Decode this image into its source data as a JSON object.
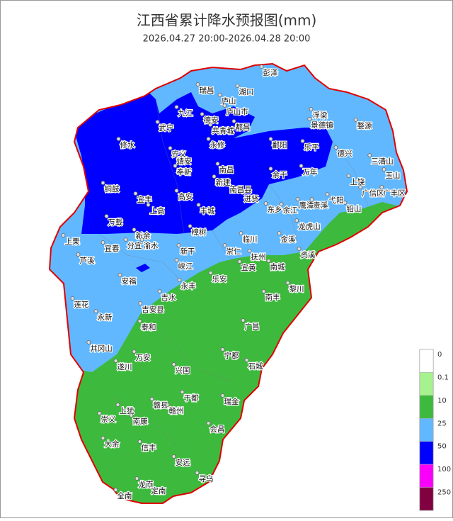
{
  "header": {
    "title": "江西省累计降水预报图(mm)",
    "subtitle": "2026.04.27 20:00-2026.04.28 20:00"
  },
  "cities": [
    "彭泽",
    "湖口",
    "瑞昌",
    "庐山",
    "庐山市",
    "九江",
    "德安",
    "共青城",
    "都昌",
    "武宁",
    "修水",
    "永修",
    "鄱阳",
    "乐平",
    "浮梁",
    "景德镇",
    "婺源",
    "德兴",
    "三清山",
    "玉山",
    "上饶",
    "广信区",
    "广丰区",
    "铅山",
    "弋阳",
    "贵溪",
    "鹰潭",
    "余江",
    "东乡",
    "进贤",
    "余干",
    "万年",
    "南昌",
    "南昌县",
    "新建",
    "安义",
    "靖安",
    "奉新",
    "铜鼓",
    "宜丰",
    "上高",
    "高安",
    "丰城",
    "樟树",
    "万载",
    "上栗",
    "芦溪",
    "宜春",
    "分宜",
    "新余",
    "渝水",
    "新干",
    "峡江",
    "崇仁",
    "临川",
    "抚州",
    "宜黄",
    "南城",
    "金溪",
    "资溪",
    "龙虎山",
    "安福",
    "吉水",
    "永丰",
    "乐安",
    "南丰",
    "黎川",
    "莲花",
    "吉安县",
    "永新",
    "泰和",
    "井冈山",
    "万安",
    "遂川",
    "兴国",
    "宁都",
    "石城",
    "广昌",
    "于都",
    "瑞金",
    "赣县",
    "赣州",
    "上犹",
    "崇义",
    "南康",
    "会昌",
    "大余",
    "信丰",
    "安远",
    "寻乌",
    "龙南",
    "全南",
    "定南"
  ],
  "legend": {
    "labels": [
      0,
      0.1,
      10,
      25,
      50,
      100,
      250
    ],
    "colors": [
      "#ffffff",
      "#a6f28f",
      "#3dba3d",
      "#61b8ff",
      "#0000ff",
      "#fa00fa",
      "#800040"
    ]
  }
}
